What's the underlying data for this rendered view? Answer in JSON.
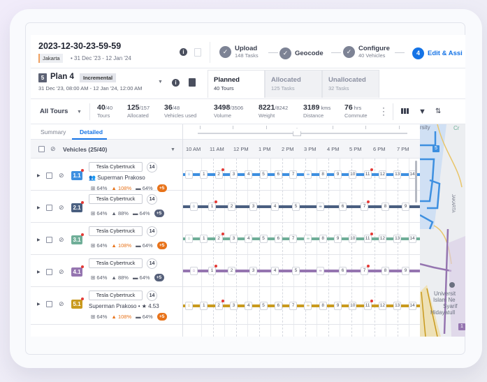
{
  "header": {
    "title": "2023-12-30-23-59-59",
    "city": "Jakarta",
    "date_range": "• 31 Dec '23 - 12 Jan '24",
    "steps": [
      {
        "label": "Upload",
        "sub": "148 Tasks",
        "state": "done"
      },
      {
        "label": "Geocode",
        "sub": "",
        "state": "done"
      },
      {
        "label": "Configure",
        "sub": "40 Vehicles",
        "state": "done"
      },
      {
        "number": "4",
        "label": "Edit & Assi",
        "sub": "",
        "state": "active"
      }
    ]
  },
  "plan": {
    "icon_letter": "5",
    "title": "Plan 4",
    "tag": "Incremental",
    "dates": "31 Dec '23, 08:00 AM - 12 Jan '24, 12:00 AM",
    "tabs": [
      {
        "label": "Planned",
        "sub": "40 Tours",
        "active": true
      },
      {
        "label": "Allocated",
        "sub": "125 Tasks",
        "active": false
      },
      {
        "label": "Unallocated",
        "sub": "32 Tasks",
        "active": false
      }
    ]
  },
  "stats": {
    "filter": "All Tours",
    "items": [
      {
        "value": "40",
        "total": "/40",
        "label": "Tours"
      },
      {
        "value": "125",
        "total": "/157",
        "label": "Allocated"
      },
      {
        "value": "36",
        "total": "/48",
        "label": "Vehicles used"
      },
      {
        "value": "3498",
        "total": "/3506",
        "label": "Volume"
      },
      {
        "value": "8221",
        "total": "/8242",
        "label": "Weight"
      },
      {
        "value": "3189",
        "total": " kms",
        "label": "Distance"
      },
      {
        "value": "76",
        "total": " hrs",
        "label": "Commute"
      }
    ]
  },
  "subtabs": {
    "summary": "Summary",
    "detailed": "Detailed"
  },
  "table": {
    "vehicles_header": "Vehicles (25/40)",
    "hours": [
      "10 AM",
      "11 AM",
      "12 PM",
      "1 PM",
      "2 PM",
      "3 PM",
      "4 PM",
      "5 PM",
      "6 PM",
      "7 PM"
    ],
    "rows": [
      {
        "id": "1.1",
        "color": "#3d8fe0",
        "vehicle": "Tesla Cybertruck",
        "count": "14",
        "driver": "Superman Prakoso",
        "rating": "",
        "m1": "64%",
        "m2": "108%",
        "m2_warn": true,
        "m3": "64%",
        "plus": "+5",
        "plus_color": "#e8731a"
      },
      {
        "id": "2.1",
        "color": "#4a5f80",
        "vehicle": "Tesla Cybertruck",
        "count": "14",
        "driver": "",
        "rating": "",
        "m1": "64%",
        "m2": "88%",
        "m2_warn": false,
        "m3": "64%",
        "plus": "+5",
        "plus_color": "#56607a"
      },
      {
        "id": "3.1",
        "color": "#6fae98",
        "vehicle": "Tesla Cybertruck",
        "count": "14",
        "driver": "",
        "rating": "",
        "m1": "64%",
        "m2": "108%",
        "m2_warn": true,
        "m3": "64%",
        "plus": "+5",
        "plus_color": "#e8731a"
      },
      {
        "id": "4.1",
        "color": "#9575b0",
        "vehicle": "Tesla Cybertruck",
        "count": "14",
        "driver": "",
        "rating": "",
        "m1": "64%",
        "m2": "88%",
        "m2_warn": false,
        "m3": "64%",
        "plus": "+5",
        "plus_color": "#56607a"
      },
      {
        "id": "5.1",
        "color": "#c99a1e",
        "vehicle": "Tesla Cybertruck",
        "count": "14",
        "driver": "Superman Prakoso • ★ 4.53",
        "rating": "4.53",
        "m1": "64%",
        "m2": "108%",
        "m2_warn": true,
        "m3": "64%",
        "plus": "+5",
        "plus_color": "#e8731a"
      }
    ]
  },
  "timeline": {
    "long_stops": [
      "home",
      "1",
      "2",
      "3",
      "4",
      "5",
      "6",
      "7",
      "break",
      "8",
      "9",
      "10",
      "11",
      "12",
      "13",
      "14"
    ],
    "short_stops": [
      "home",
      "1",
      "2",
      "3",
      "4",
      "5",
      "break",
      "6",
      "7",
      "8",
      "9"
    ]
  },
  "map": {
    "labels": [
      "rsity",
      "Cr",
      "JAKARTA",
      "Universit",
      "Islam Ne",
      "Syarif",
      "Hidayatull"
    ],
    "pins": [
      "5",
      "1"
    ]
  }
}
